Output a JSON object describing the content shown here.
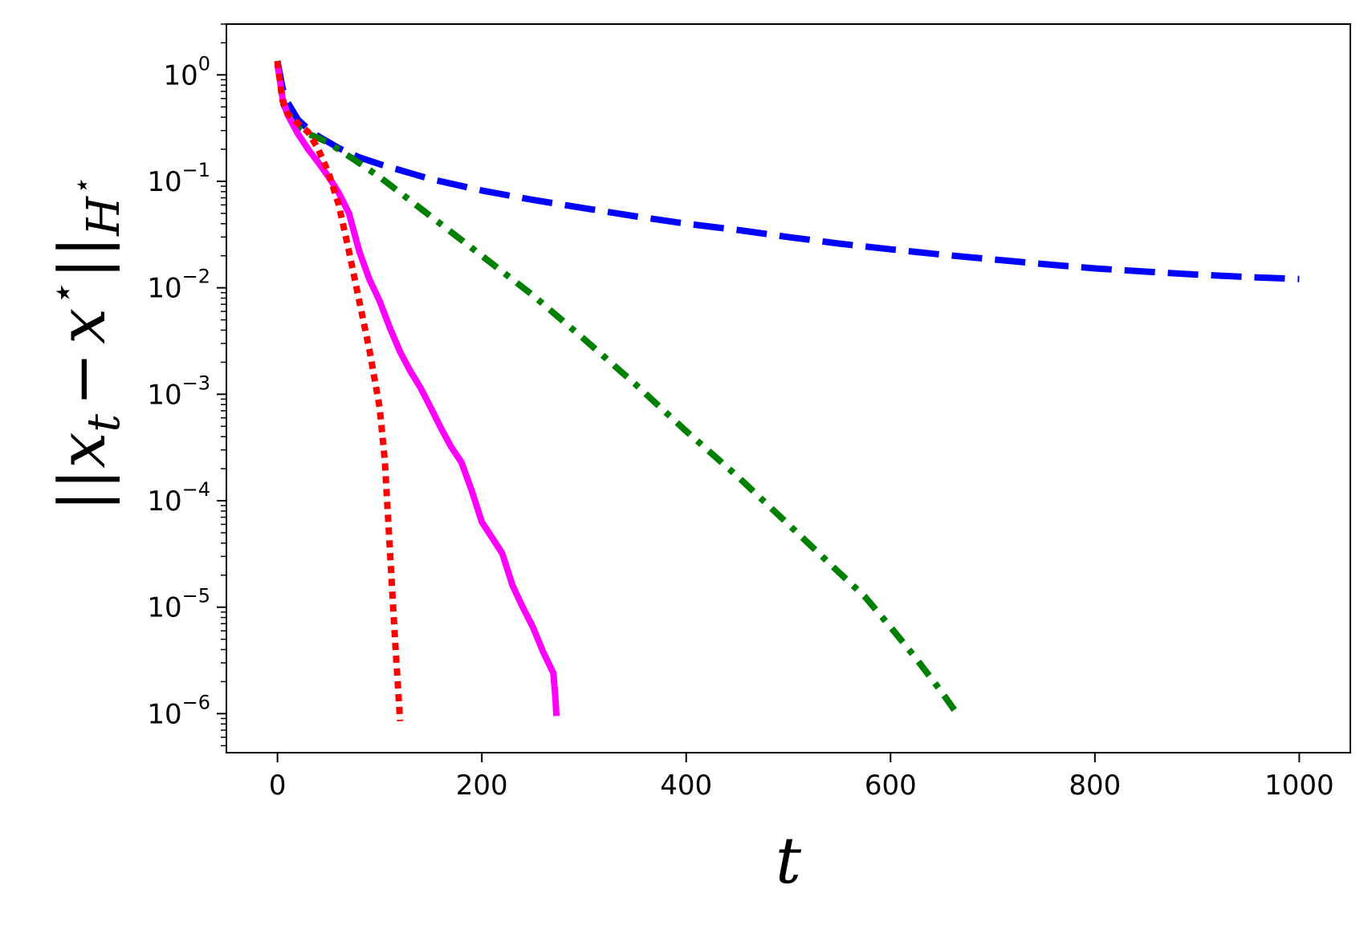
{
  "chart_data": {
    "type": "line",
    "title": "",
    "xlabel": "t",
    "ylabel": "||x_t − x^⋆||_{H^⋆}",
    "xscale": "linear",
    "yscale": "log",
    "xlim": [
      -50,
      1050
    ],
    "ylim": [
      4.3e-07,
      3.0
    ],
    "grid": false,
    "legend": "none",
    "x_ticks": [
      {
        "value": 0,
        "label": "0"
      },
      {
        "value": 200,
        "label": "200"
      },
      {
        "value": 400,
        "label": "400"
      },
      {
        "value": 600,
        "label": "600"
      },
      {
        "value": 800,
        "label": "800"
      },
      {
        "value": 1000,
        "label": "1000"
      }
    ],
    "y_ticks": [
      {
        "value": 1,
        "base": "10",
        "exp": "0"
      },
      {
        "value": 0.1,
        "base": "10",
        "exp": "−1"
      },
      {
        "value": 0.01,
        "base": "10",
        "exp": "−2"
      },
      {
        "value": 0.001,
        "base": "10",
        "exp": "−3"
      },
      {
        "value": 0.0001,
        "base": "10",
        "exp": "−4"
      },
      {
        "value": 1e-05,
        "base": "10",
        "exp": "−5"
      },
      {
        "value": 1e-06,
        "base": "10",
        "exp": "−6"
      }
    ],
    "series": [
      {
        "color": "#0000ff",
        "style": "dashed",
        "x": [
          0,
          5,
          10,
          20,
          30,
          40,
          60,
          80,
          100,
          150,
          200,
          250,
          300,
          350,
          400,
          450,
          500,
          550,
          600,
          650,
          700,
          750,
          800,
          850,
          900,
          950,
          1000
        ],
        "y": [
          1.35,
          0.75,
          0.55,
          0.38,
          0.31,
          0.265,
          0.205,
          0.168,
          0.145,
          0.105,
          0.082,
          0.067,
          0.056,
          0.047,
          0.04,
          0.035,
          0.03,
          0.026,
          0.023,
          0.0205,
          0.0185,
          0.0167,
          0.0152,
          0.0142,
          0.0133,
          0.0126,
          0.0121
        ]
      },
      {
        "color": "#008000",
        "style": "dashdot",
        "x": [
          0,
          5,
          10,
          20,
          30,
          40,
          50,
          75,
          100,
          150,
          200,
          250,
          300,
          350,
          400,
          450,
          500,
          550,
          575,
          600,
          625,
          650,
          665
        ],
        "y": [
          1.35,
          0.55,
          0.43,
          0.32,
          0.28,
          0.255,
          0.23,
          0.16,
          0.11,
          0.047,
          0.02,
          0.0085,
          0.0033,
          0.00125,
          0.00045,
          0.00017,
          6e-05,
          2.1e-05,
          1.25e-05,
          6.5e-06,
          3.3e-06,
          1.6e-06,
          1e-06
        ]
      },
      {
        "color": "#ff00ff",
        "style": "solid",
        "x": [
          0,
          5,
          10,
          20,
          30,
          40,
          50,
          60,
          70,
          80,
          90,
          100,
          110,
          120,
          130,
          140,
          150,
          160,
          170,
          180,
          190,
          200,
          210,
          220,
          230,
          240,
          250,
          260,
          270,
          272,
          273
        ],
        "y": [
          1.25,
          0.6,
          0.42,
          0.28,
          0.2,
          0.15,
          0.11,
          0.078,
          0.05,
          0.022,
          0.012,
          0.0075,
          0.0042,
          0.0025,
          0.00165,
          0.00115,
          0.00075,
          0.00048,
          0.00032,
          0.00023,
          0.000125,
          6.3e-05,
          4.5e-05,
          3.2e-05,
          1.6e-05,
          1e-05,
          6.5e-06,
          3.8e-06,
          2.4e-06,
          1.4e-06,
          9.5e-07
        ]
      },
      {
        "color": "#ff0000",
        "style": "dotted",
        "x": [
          0,
          5,
          10,
          20,
          30,
          40,
          50,
          60,
          70,
          80,
          90,
          100,
          105,
          110,
          115,
          120
        ],
        "y": [
          1.35,
          0.57,
          0.43,
          0.35,
          0.29,
          0.2,
          0.12,
          0.06,
          0.022,
          0.0075,
          0.0026,
          0.00075,
          0.00024,
          3.5e-05,
          5e-06,
          8.5e-07
        ]
      }
    ]
  }
}
